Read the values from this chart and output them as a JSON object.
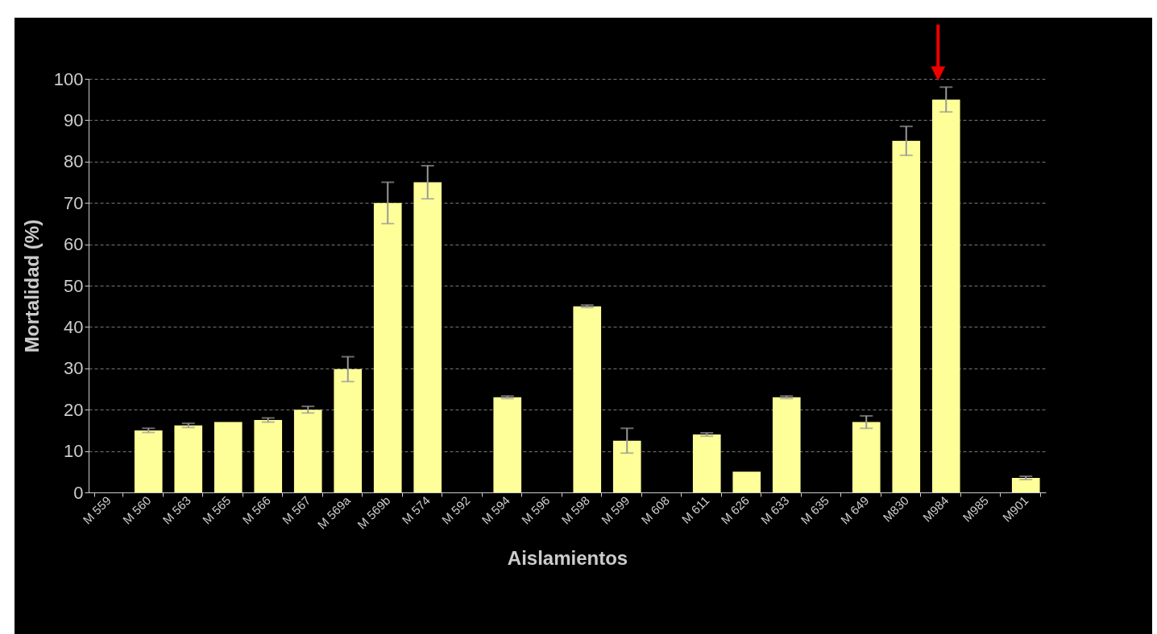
{
  "chart_data": {
    "type": "bar",
    "xlabel": "Aislamientos",
    "ylabel": "Mortalidad (%)",
    "categories": [
      "M 559",
      "M 560",
      "M 563",
      "M 565",
      "M 566",
      "M 567",
      "M 569a",
      "M 569b",
      "M 574",
      "M 592",
      "M 594",
      "M 596",
      "M 598",
      "M 599",
      "M 608",
      "M 611",
      "M 626",
      "M 633",
      "M 635",
      "M 649",
      "M830",
      "M984",
      "M985",
      "M901"
    ],
    "series": [
      {
        "color": "#ffff99",
        "values": [
          0,
          15,
          16.2,
          17,
          17.5,
          20,
          29.8,
          70,
          75,
          0,
          23,
          0,
          45,
          12.5,
          0,
          14,
          5,
          23,
          0,
          17,
          85,
          95,
          0,
          3.5
        ],
        "errors": [
          null,
          0.5,
          0.5,
          null,
          0.5,
          0.8,
          3,
          5,
          4,
          null,
          0.3,
          null,
          0.3,
          3,
          null,
          0.4,
          null,
          0.3,
          null,
          1.5,
          3.5,
          3,
          null,
          0.4
        ]
      }
    ],
    "ylim": [
      0,
      100
    ],
    "yticks": [
      0,
      10,
      20,
      30,
      40,
      50,
      60,
      70,
      80,
      90,
      100
    ],
    "grid": "y"
  }
}
